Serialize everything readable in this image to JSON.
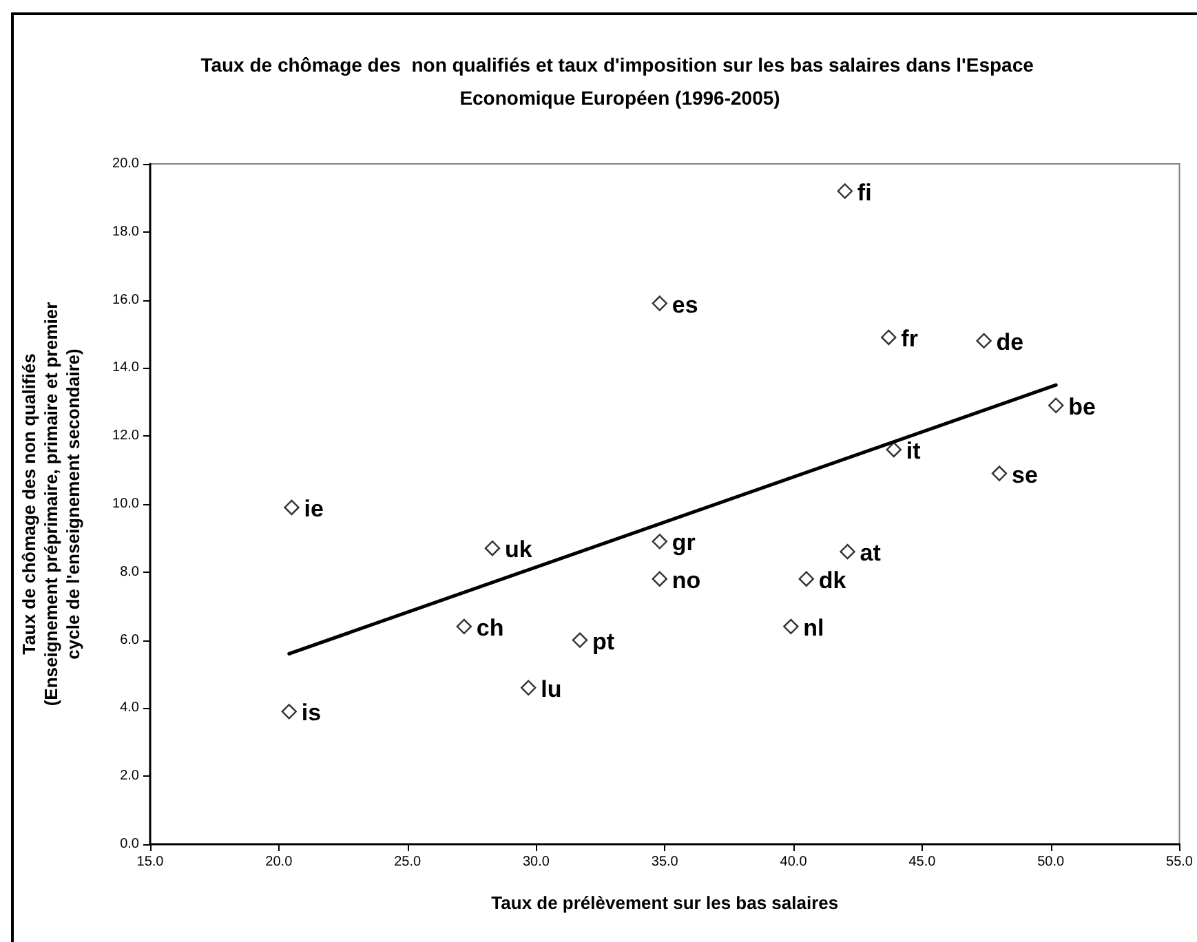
{
  "chart_data": {
    "type": "scatter",
    "title": "Taux de chômage des  non qualifiés et taux d'imposition sur les bas salaires dans l'Espace Economique Européen (1996-2005)",
    "xlabel": "Taux de prélèvement sur les bas salaires",
    "ylabel": "Taux de chômage des non qualifiés\n(Enseignement préprimaire, primaire et premier\ncycle de l'enseignement secondaire)",
    "xlim": [
      15,
      55
    ],
    "xticks": [
      {
        "value": 15,
        "label": "15.0"
      },
      {
        "value": 20,
        "label": "20.0"
      },
      {
        "value": 25,
        "label": "25.0"
      },
      {
        "value": 30,
        "label": "30.0"
      },
      {
        "value": 35,
        "label": "35.0"
      },
      {
        "value": 40,
        "label": "40.0"
      },
      {
        "value": 45,
        "label": "45.0"
      },
      {
        "value": 50,
        "label": "50.0"
      },
      {
        "value": 55,
        "label": "55.0"
      }
    ],
    "ylim": [
      0,
      20
    ],
    "yticks": [
      {
        "value": 0,
        "label": "0.0"
      },
      {
        "value": 2,
        "label": "2.0"
      },
      {
        "value": 4,
        "label": "4.0"
      },
      {
        "value": 6,
        "label": "6.0"
      },
      {
        "value": 8,
        "label": "8.0"
      },
      {
        "value": 10,
        "label": "10.0"
      },
      {
        "value": 12,
        "label": "12.0"
      },
      {
        "value": 14,
        "label": "14.0"
      },
      {
        "value": 16,
        "label": "16.0"
      },
      {
        "value": 18,
        "label": "18.0"
      },
      {
        "value": 20,
        "label": "20.0"
      }
    ],
    "marker": "diamond",
    "series": [
      {
        "color": "#000000",
        "x": [
          20.4,
          20.5,
          28.3,
          27.2,
          29.7,
          31.7,
          34.8,
          34.8,
          34.8,
          39.9,
          40.5,
          42.1,
          42.0,
          43.7,
          43.9,
          47.4,
          48.0,
          50.2
        ],
        "values": [
          3.9,
          9.9,
          8.7,
          6.4,
          4.6,
          6.0,
          8.9,
          7.8,
          15.9,
          6.4,
          7.8,
          8.6,
          19.2,
          14.9,
          11.6,
          14.8,
          10.9,
          12.9
        ]
      },
      {
        "type": "line",
        "marker": "none",
        "color": "#000000",
        "x": [
          20.4,
          50.2
        ],
        "values": [
          5.6,
          13.5
        ]
      }
    ],
    "annotations": [
      {
        "text": "is",
        "x": 20.4,
        "y": 3.9
      },
      {
        "text": "ie",
        "x": 20.5,
        "y": 9.9
      },
      {
        "text": "uk",
        "x": 28.3,
        "y": 8.7
      },
      {
        "text": "ch",
        "x": 27.2,
        "y": 6.4
      },
      {
        "text": "lu",
        "x": 29.7,
        "y": 4.6
      },
      {
        "text": "pt",
        "x": 31.7,
        "y": 6.0
      },
      {
        "text": "gr",
        "x": 34.8,
        "y": 8.9
      },
      {
        "text": "no",
        "x": 34.8,
        "y": 7.8
      },
      {
        "text": "es",
        "x": 34.8,
        "y": 15.9
      },
      {
        "text": "nl",
        "x": 39.9,
        "y": 6.4
      },
      {
        "text": "dk",
        "x": 40.5,
        "y": 7.8
      },
      {
        "text": "at",
        "x": 42.1,
        "y": 8.6
      },
      {
        "text": "fi",
        "x": 42.0,
        "y": 19.2
      },
      {
        "text": "fr",
        "x": 43.7,
        "y": 14.9
      },
      {
        "text": "it",
        "x": 43.9,
        "y": 11.6
      },
      {
        "text": "de",
        "x": 47.4,
        "y": 14.8
      },
      {
        "text": "se",
        "x": 48.0,
        "y": 10.9
      },
      {
        "text": "be",
        "x": 50.2,
        "y": 12.9
      }
    ]
  }
}
